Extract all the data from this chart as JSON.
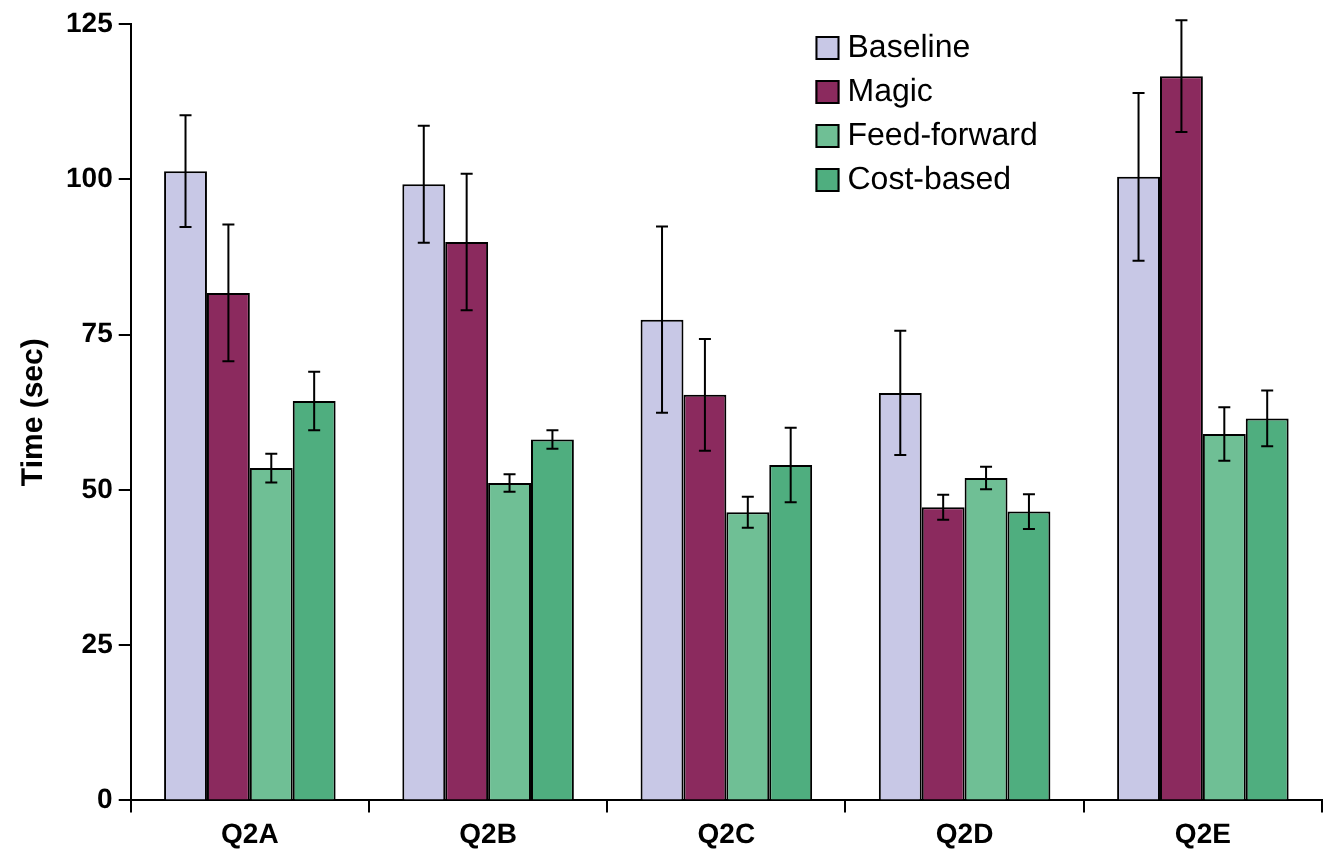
{
  "chart_data": {
    "type": "bar",
    "ylabel": "Time (sec)",
    "categories": [
      "Q2A",
      "Q2B",
      "Q2C",
      "Q2D",
      "Q2E"
    ],
    "series": [
      {
        "name": "Baseline",
        "color": "#c8c8e6",
        "values": [
          101.3,
          99.2,
          77.4,
          65.6,
          100.4
        ],
        "errors": [
          9,
          9.4,
          15,
          10,
          13.5
        ]
      },
      {
        "name": "Magic",
        "color": "#8b2a5e",
        "values": [
          81.7,
          89.9,
          65.3,
          47.2,
          116.6
        ],
        "errors": [
          11,
          11,
          9,
          2,
          9
        ]
      },
      {
        "name": "Feed-forward",
        "color": "#6fbf95",
        "values": [
          53.5,
          51.1,
          46.4,
          51.9,
          59
        ],
        "errors": [
          2.3,
          1.4,
          2.5,
          1.8,
          4.3
        ]
      },
      {
        "name": "Cost-based",
        "color": "#4fae7f",
        "values": [
          64.3,
          58.1,
          54,
          46.5,
          61.5
        ],
        "errors": [
          4.7,
          1.5,
          6,
          2.8,
          4.5
        ]
      }
    ],
    "ylim": [
      0,
      125
    ],
    "yticks": [
      0,
      25,
      50,
      75,
      100,
      125
    ],
    "grid": false,
    "legend": "top right"
  }
}
